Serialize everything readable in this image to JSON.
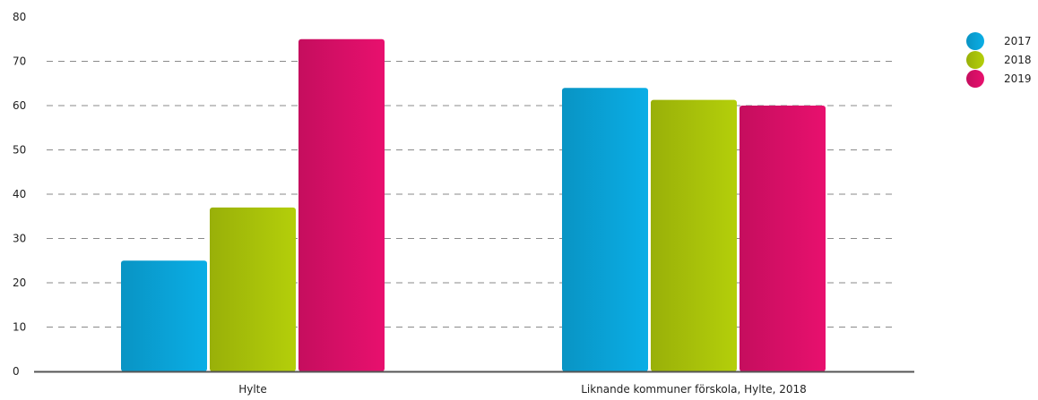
{
  "chart_data": {
    "type": "bar",
    "categories": [
      "Hylte",
      "Liknande kommuner förskola, Hylte, 2018"
    ],
    "series": [
      {
        "name": "2017",
        "values": [
          25,
          64
        ],
        "color": "#0aaee6"
      },
      {
        "name": "2018",
        "values": [
          37,
          61.3
        ],
        "color": "#b4cf0a"
      },
      {
        "name": "2019",
        "values": [
          75,
          60
        ],
        "color": "#e8106e"
      }
    ],
    "yticks": [
      0,
      10,
      20,
      30,
      40,
      50,
      60,
      70,
      80
    ],
    "ylim": [
      0,
      80
    ],
    "grid": "horizontal-dashed",
    "legend_position": "top-right",
    "title": "",
    "xlabel": "",
    "ylabel": ""
  }
}
